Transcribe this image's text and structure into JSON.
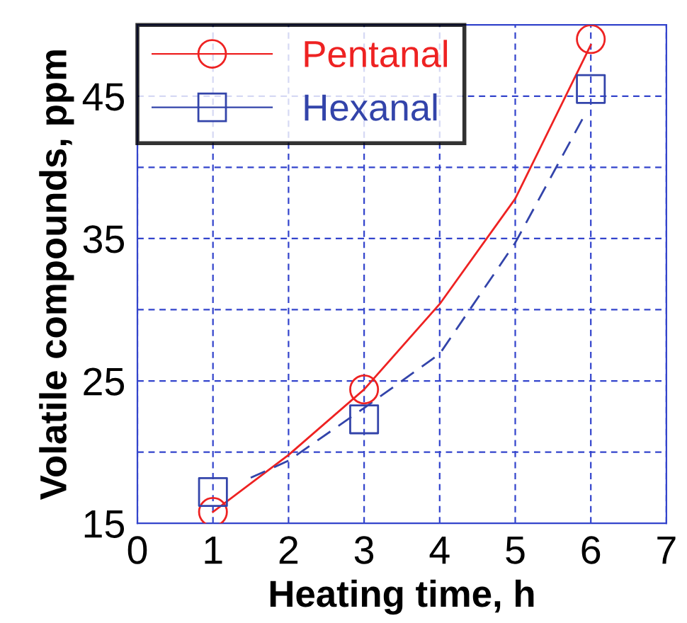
{
  "chart_data": {
    "type": "scatter",
    "xlabel": "Heating time, h",
    "ylabel": "Volatile compounds, ppm",
    "xlim": [
      0,
      7
    ],
    "xticks": [
      0,
      1,
      2,
      3,
      4,
      5,
      6,
      7
    ],
    "ylim": [
      15,
      50
    ],
    "yticks": [
      15,
      {
        "value": 20,
        "label": null
      },
      25,
      {
        "value": 30,
        "label": null
      },
      35,
      {
        "value": 40,
        "label": null
      },
      45
    ],
    "grid": true,
    "legend": "top left",
    "series": [
      {
        "name": "Pentanal",
        "marker": "circle",
        "color": "#ee2222",
        "x": [
          1,
          3,
          6
        ],
        "values": [
          15.8,
          24.4,
          49.0
        ]
      },
      {
        "name": "Hexanal",
        "marker": "square",
        "color": "#3344aa",
        "x": [
          1,
          3,
          6
        ],
        "values": [
          17.2,
          22.3,
          45.5
        ]
      },
      {
        "type": "line",
        "line_style": "solid",
        "color": "#ee2222",
        "x": [
          1,
          2,
          3,
          4,
          5,
          6
        ],
        "values": [
          15.8,
          19.8,
          24.4,
          30.4,
          37.8,
          48.6
        ]
      },
      {
        "type": "line",
        "line_style": "dashed",
        "color": "#3344aa",
        "x": [
          1.5,
          2,
          3,
          4,
          5,
          5.9
        ],
        "values": [
          18.2,
          19.4,
          23.1,
          26.9,
          34.7,
          43.5
        ]
      }
    ]
  }
}
